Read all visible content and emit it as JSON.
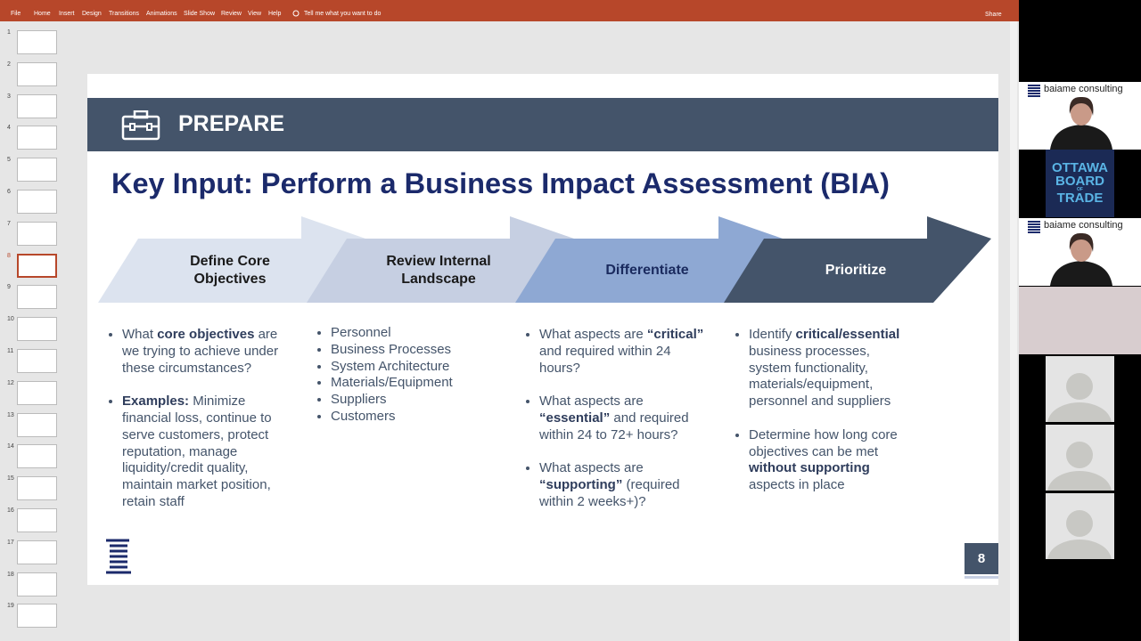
{
  "ribbon": {
    "tabs": [
      "File",
      "Home",
      "Insert",
      "Design",
      "Transitions",
      "Animations",
      "Slide Show",
      "Review",
      "View",
      "Help"
    ],
    "tell_me": "Tell me what you want to do",
    "share": "Share"
  },
  "thumbnails": [
    "1",
    "2",
    "3",
    "4",
    "5",
    "6",
    "7",
    "8",
    "9",
    "10",
    "11",
    "12",
    "13",
    "14",
    "15",
    "16",
    "17",
    "18",
    "19"
  ],
  "selected_thumbnail": "8",
  "slide": {
    "banner": "PREPARE",
    "title": "Key Input: Perform a Business Impact Assessment (BIA)",
    "steps": [
      {
        "lines": [
          "Define Core",
          "Objectives"
        ],
        "color": "#dce3ef",
        "text_color": "#1a1a1a"
      },
      {
        "lines": [
          "Review Internal",
          "Landscape"
        ],
        "color": "#c6cfe2",
        "text_color": "#1a1a1a"
      },
      {
        "lines": [
          "Differentiate"
        ],
        "color": "#8ea8d3",
        "text_color": "#1a2a5e"
      },
      {
        "lines": [
          "Prioritize"
        ],
        "color": "#44546a",
        "text_color": "#ffffff"
      }
    ],
    "columns": [
      {
        "spaced": true,
        "bullets": [
          [
            {
              "text": "What "
            },
            {
              "text": "core objectives",
              "bold": true
            },
            {
              "text": " are we trying to achieve under these circumstances?"
            }
          ],
          [
            {
              "text": "Examples:",
              "bold": true
            },
            {
              "text": " Minimize financial loss, continue to serve customers, protect reputation, manage liquidity/credit quality, maintain market position, retain staff"
            }
          ]
        ]
      },
      {
        "spaced": false,
        "bullets": [
          [
            {
              "text": "Personnel"
            }
          ],
          [
            {
              "text": "Business Processes"
            }
          ],
          [
            {
              "text": "System Architecture"
            }
          ],
          [
            {
              "text": "Materials/Equipment"
            }
          ],
          [
            {
              "text": "Suppliers"
            }
          ],
          [
            {
              "text": "Customers"
            }
          ]
        ]
      },
      {
        "spaced": true,
        "bullets": [
          [
            {
              "text": "What aspects are "
            },
            {
              "text": "“critical”",
              "bold": true
            },
            {
              "text": " and required within 24 hours?"
            }
          ],
          [
            {
              "text": "What aspects are "
            },
            {
              "text": "“essential”",
              "bold": true
            },
            {
              "text": " and required within 24 to 72+ hours?"
            }
          ],
          [
            {
              "text": "What aspects are "
            },
            {
              "text": "“supporting”",
              "bold": true
            },
            {
              "text": " (required within 2 weeks+)?"
            }
          ]
        ]
      },
      {
        "spaced": true,
        "bullets": [
          [
            {
              "text": "Identify "
            },
            {
              "text": "critical/essential",
              "bold": true
            },
            {
              "text": " business processes, system functionality, materials/equipment, personnel and suppliers"
            }
          ],
          [
            {
              "text": "Determine how long core objectives can be met "
            },
            {
              "text": "without supporting",
              "bold": true
            },
            {
              "text": " aspects in place"
            }
          ]
        ]
      }
    ],
    "page_number": "8"
  },
  "participants": {
    "brand": "baiame consulting",
    "ottawa": [
      "OTTAWA",
      "BOARD",
      "OF",
      "TRADE"
    ]
  }
}
